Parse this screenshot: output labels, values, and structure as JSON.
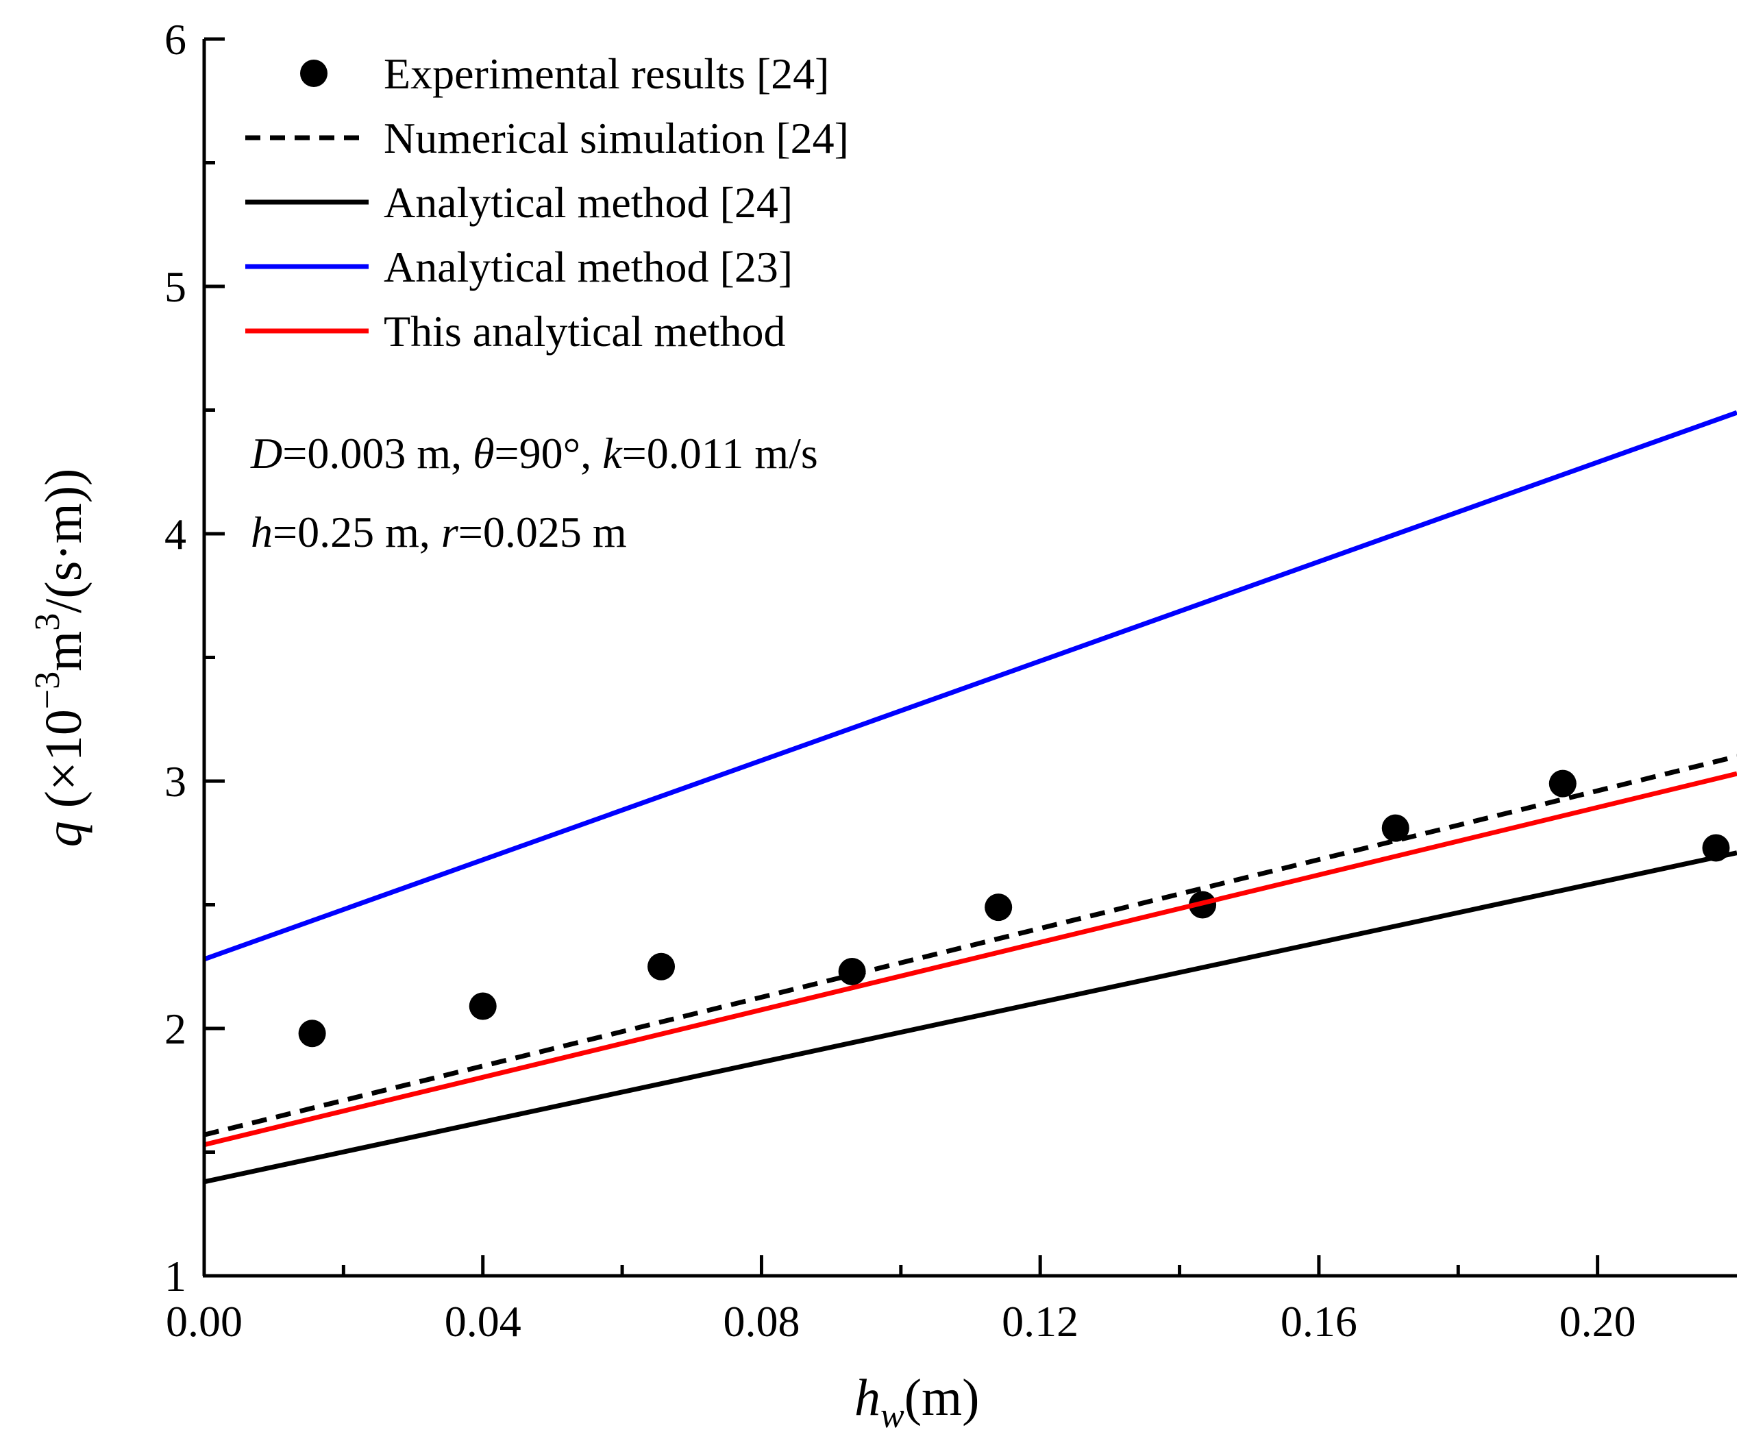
{
  "chart_data": {
    "type": "scatter",
    "title": "",
    "xlabel": {
      "main": "h",
      "sub": "w",
      "unit": "(m)"
    },
    "ylabel": {
      "main": "q",
      "rest": " (×10",
      "exp1": "−3",
      "mid": "m",
      "exp2": "3",
      "end": "/(s·m))"
    },
    "xlim": [
      0,
      0.22
    ],
    "ylim": [
      1,
      6
    ],
    "x_ticks": [
      0.0,
      0.04,
      0.08,
      0.12,
      0.16,
      0.2
    ],
    "x_tick_labels": [
      "0.00",
      "0.04",
      "0.08",
      "0.12",
      "0.16",
      "0.20"
    ],
    "y_ticks": [
      1,
      2,
      3,
      4,
      5,
      6
    ],
    "y_tick_labels": [
      "1",
      "2",
      "3",
      "4",
      "5",
      "6"
    ],
    "grid": false,
    "legend_position": "top-left",
    "series": [
      {
        "name": "Experimental results [24]",
        "kind": "markers",
        "color": "#000000",
        "x": [
          0.0155,
          0.04,
          0.0656,
          0.093,
          0.114,
          0.1433,
          0.171,
          0.195,
          0.217
        ],
        "y": [
          1.98,
          2.09,
          2.25,
          2.23,
          2.49,
          2.5,
          2.81,
          2.99,
          2.73
        ]
      },
      {
        "name": "Numerical simulation [24]",
        "kind": "dashed-line",
        "color": "#000000",
        "x": [
          0,
          0.22
        ],
        "y": [
          1.57,
          3.1
        ]
      },
      {
        "name": "Analytical method [24]",
        "kind": "line",
        "color": "#000000",
        "x": [
          0,
          0.22
        ],
        "y": [
          1.38,
          2.71
        ]
      },
      {
        "name": "Analytical method [23]",
        "kind": "line",
        "color": "#0000ff",
        "x": [
          0,
          0.22
        ],
        "y": [
          2.28,
          4.49
        ]
      },
      {
        "name": "This analytical method",
        "kind": "line",
        "color": "#ff0000",
        "x": [
          0,
          0.22
        ],
        "y": [
          1.53,
          3.03
        ]
      }
    ],
    "annotations": {
      "line1": [
        {
          "t": "D",
          "i": true
        },
        {
          "t": "=0.003 m, ",
          "i": false
        },
        {
          "t": "θ",
          "i": true
        },
        {
          "t": "=90°, ",
          "i": false
        },
        {
          "t": "k",
          "i": true
        },
        {
          "t": "=0.011 m/s",
          "i": false
        }
      ],
      "line2": [
        {
          "t": "h",
          "i": true
        },
        {
          "t": "=0.25 m, ",
          "i": false
        },
        {
          "t": "r",
          "i": true
        },
        {
          "t": "=0.025 m",
          "i": false
        }
      ]
    }
  }
}
